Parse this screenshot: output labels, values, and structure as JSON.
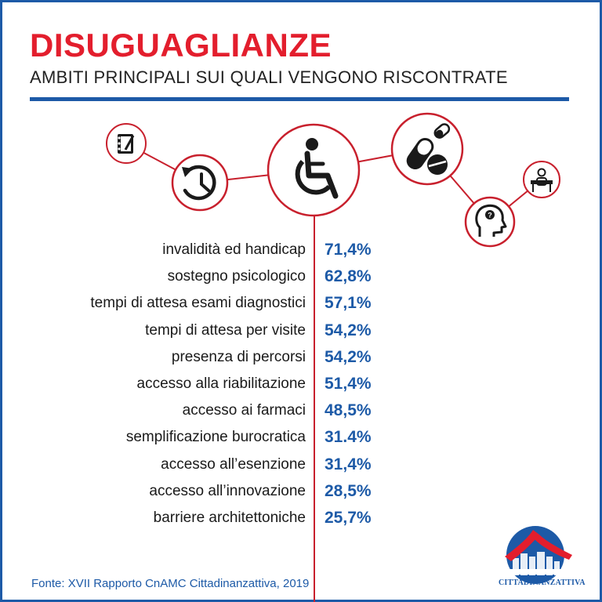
{
  "header": {
    "title": "DISUGUAGLIANZE",
    "subtitle": "AMBITI PRINCIPALI SUI QUALI VENGONO RISCONTRATE"
  },
  "chart_data": {
    "type": "table",
    "title": "DISUGUAGLIANZE",
    "subtitle": "AMBITI PRINCIPALI SUI QUALI VENGONO RISCONTRATE",
    "categories": [
      "invalidità ed handicap",
      "sostegno psicologico",
      "tempi di attesa esami diagnostici",
      "tempi di attesa per visite",
      "presenza di percorsi",
      "accesso alla riabilitazione",
      "accesso ai farmaci",
      "semplificazione burocratica",
      "accesso all’esenzione",
      "accesso all’innovazione",
      "barriere architettoniche"
    ],
    "values": [
      71.4,
      62.8,
      57.1,
      54.2,
      54.2,
      51.4,
      48.5,
      31.4,
      31.4,
      28.5,
      25.7
    ],
    "value_labels": [
      "71,4%",
      "62,8%",
      "57,1%",
      "54,2%",
      "54,2%",
      "51,4%",
      "48,5%",
      "31.4%",
      "31,4%",
      "28,5%",
      "25,7%"
    ]
  },
  "icons": [
    "notepad-icon",
    "clock-history-icon",
    "wheelchair-icon",
    "pills-icon",
    "head-question-icon",
    "desk-person-icon"
  ],
  "footer": {
    "source": "Fonte: XVII Rapporto CnAMC Cittadinanzattiva, 2019",
    "logo_text": "CITTADINANZATTIVA"
  },
  "colors": {
    "title_red": "#e31e2d",
    "accent_blue": "#1d5aa7",
    "connector_red": "#c8202d"
  }
}
